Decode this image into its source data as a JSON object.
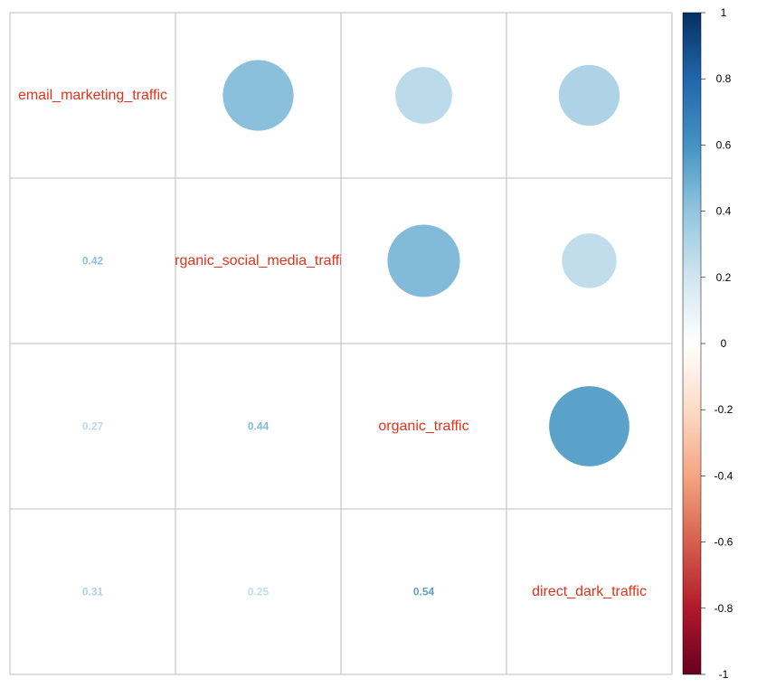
{
  "chart_data": {
    "type": "heatmap",
    "variables": [
      "email_marketing_traffic",
      "organic_social_media_traffic",
      "organic_traffic",
      "direct_dark_traffic"
    ],
    "matrix": [
      [
        1.0,
        0.42,
        0.27,
        0.31
      ],
      [
        0.42,
        1.0,
        0.44,
        0.25
      ],
      [
        0.27,
        0.44,
        1.0,
        0.54
      ],
      [
        0.31,
        0.25,
        0.54,
        1.0
      ]
    ],
    "upper_method": "circle",
    "lower_method": "number",
    "lower_labels": [
      [
        "",
        "",
        "",
        ""
      ],
      [
        "0.42",
        "",
        "",
        ""
      ],
      [
        "0.27",
        "0.44",
        "",
        ""
      ],
      [
        "0.31",
        "0.25",
        "0.54",
        ""
      ]
    ],
    "colorbar": {
      "range": [
        -1,
        1
      ],
      "ticks": [
        1,
        0.8,
        0.6,
        0.4,
        0.2,
        0,
        -0.2,
        -0.4,
        -0.6,
        -0.8,
        -1
      ],
      "tick_labels": [
        "1",
        "0.8",
        "0.6",
        "0.4",
        "0.2",
        "0",
        "-0.2",
        "-0.4",
        "-0.6",
        "-0.8",
        "-1"
      ],
      "colors": [
        "#67001F",
        "#B2182B",
        "#D6604D",
        "#F4A582",
        "#FDDBC7",
        "#FFFFFF",
        "#D1E5F0",
        "#92C5DE",
        "#4393C3",
        "#2166AC",
        "#053061"
      ]
    },
    "label_color": "#E2321C",
    "grid_color": "#BEBEBE",
    "grid": true
  }
}
